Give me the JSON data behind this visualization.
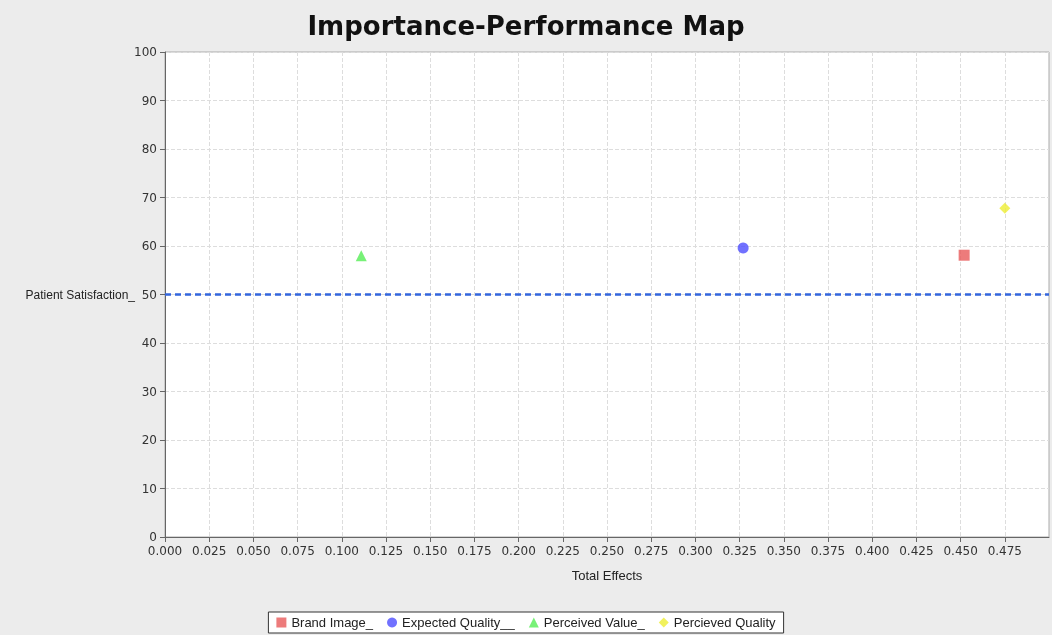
{
  "chart_data": {
    "type": "scatter",
    "title": "Importance-Performance Map",
    "xlabel": "Total Effects",
    "series": [
      {
        "name": "Brand Image_",
        "color": "#e85a5a",
        "marker": "square",
        "x": [
          0.452
        ],
        "values": [
          58.1
        ]
      },
      {
        "name": "Expected Quality__",
        "color": "#4d4dff",
        "marker": "circle",
        "x": [
          0.327
        ],
        "values": [
          59.6
        ]
      },
      {
        "name": "Perceived Value_",
        "color": "#55ee55",
        "marker": "triangle",
        "x": [
          0.111
        ],
        "values": [
          58
        ]
      },
      {
        "name": "Percieved Quality",
        "color": "#eeee33",
        "marker": "diamond",
        "x": [
          0.475
        ],
        "values": [
          67.8
        ]
      }
    ],
    "xlim": [
      0,
      0.5
    ],
    "xticks": [
      {
        "value": 0,
        "label": "0.000"
      },
      {
        "value": 0.025,
        "label": "0.025"
      },
      {
        "value": 0.05,
        "label": "0.050"
      },
      {
        "value": 0.075,
        "label": "0.075"
      },
      {
        "value": 0.1,
        "label": "0.100"
      },
      {
        "value": 0.125,
        "label": "0.125"
      },
      {
        "value": 0.15,
        "label": "0.150"
      },
      {
        "value": 0.175,
        "label": "0.175"
      },
      {
        "value": 0.2,
        "label": "0.200"
      },
      {
        "value": 0.225,
        "label": "0.225"
      },
      {
        "value": 0.25,
        "label": "0.250"
      },
      {
        "value": 0.275,
        "label": "0.275"
      },
      {
        "value": 0.3,
        "label": "0.300"
      },
      {
        "value": 0.325,
        "label": "0.325"
      },
      {
        "value": 0.35,
        "label": "0.350"
      },
      {
        "value": 0.375,
        "label": "0.375"
      },
      {
        "value": 0.4,
        "label": "0.400"
      },
      {
        "value": 0.425,
        "label": "0.425"
      },
      {
        "value": 0.45,
        "label": "0.450"
      },
      {
        "value": 0.475,
        "label": "0.475"
      }
    ],
    "ylim": [
      0,
      100
    ],
    "yticks": [
      0,
      10,
      20,
      30,
      40,
      50,
      60,
      70,
      80,
      90,
      100
    ],
    "ref_lines": [
      {
        "axis": "y",
        "value": 50,
        "label": "Patient Satisfaction_",
        "color": "#3366dd",
        "line_style": "dashed"
      }
    ],
    "grid": true,
    "legend": "bottom"
  }
}
